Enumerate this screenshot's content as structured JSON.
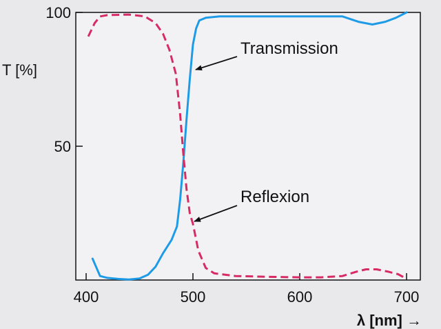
{
  "chart_data": {
    "type": "line",
    "title": "",
    "xlabel": "λ [nm] →",
    "ylabel": "T [%]",
    "xlim": [
      400,
      705
    ],
    "ylim": [
      0,
      100
    ],
    "x_ticks": [
      400,
      500,
      600,
      700
    ],
    "x_tick_labels": [
      "400",
      "500",
      "600",
      "700"
    ],
    "y_ticks": [
      50,
      100
    ],
    "y_tick_labels": [
      "50",
      "100"
    ],
    "grid": false,
    "legend": "none",
    "colors": {
      "transmission": "#1e9be6",
      "reflexion": "#d62b63"
    },
    "series": [
      {
        "name": "Transmission",
        "style": "solid",
        "x": [
          406,
          413,
          420,
          430,
          440,
          450,
          458,
          465,
          472,
          480,
          485,
          488,
          491,
          494,
          497,
          500,
          503,
          506,
          512,
          525,
          550,
          600,
          640,
          655,
          668,
          680,
          690,
          700
        ],
        "y": [
          8,
          1.5,
          0.8,
          0.4,
          0.2,
          0.6,
          2,
          5,
          10,
          15,
          20,
          30,
          44,
          60,
          75,
          88,
          94,
          97,
          98,
          98.5,
          98.5,
          98.5,
          98.5,
          96.5,
          95.5,
          96.5,
          98,
          100
        ]
      },
      {
        "name": "Reflexion",
        "style": "dashed",
        "x": [
          402,
          408,
          413,
          420,
          440,
          455,
          465,
          472,
          478,
          484,
          488,
          491,
          494,
          497,
          500,
          505,
          512,
          520,
          540,
          570,
          600,
          620,
          640,
          652,
          662,
          672,
          682,
          692,
          700
        ],
        "y": [
          91,
          96,
          98.5,
          99,
          99.2,
          98.5,
          96,
          92,
          86,
          77,
          62,
          47,
          34,
          25,
          21,
          11,
          4.5,
          2.5,
          1.5,
          1.2,
          1,
          1,
          1.5,
          3,
          4,
          4,
          3.2,
          2.2,
          0.5
        ]
      }
    ],
    "annotations": [
      {
        "text": "Transmission",
        "target_series": "Transmission"
      },
      {
        "text": "Reflexion",
        "target_series": "Reflexion"
      }
    ]
  }
}
